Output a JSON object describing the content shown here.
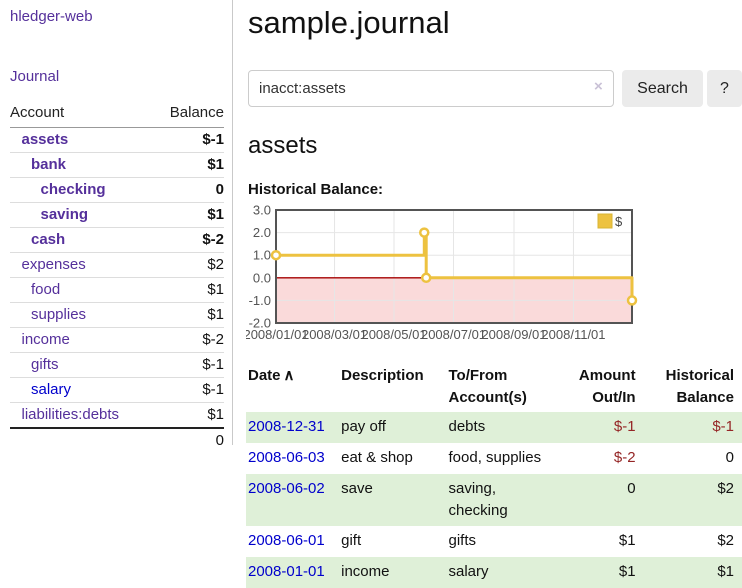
{
  "sidebar": {
    "brand": "hledger-web",
    "nav_journal": "Journal",
    "table": {
      "account_header": "Account",
      "balance_header": "Balance",
      "rows": [
        {
          "name": "assets",
          "level": 1,
          "balance": "$-1",
          "bold": true,
          "balance_style": "neg-strong",
          "link_style": "purple"
        },
        {
          "name": "bank",
          "level": 2,
          "balance": "$1",
          "bold": true,
          "balance_style": "normal",
          "link_style": "purple"
        },
        {
          "name": "checking",
          "level": 3,
          "balance": "0",
          "bold": true,
          "balance_style": "normal",
          "link_style": "purple"
        },
        {
          "name": "saving",
          "level": 3,
          "balance": "$1",
          "bold": true,
          "balance_style": "normal",
          "link_style": "purple"
        },
        {
          "name": "cash",
          "level": 2,
          "balance": "$-2",
          "bold": true,
          "balance_style": "neg-strong",
          "link_style": "purple"
        },
        {
          "name": "expenses",
          "level": 1,
          "balance": "$2",
          "bold": false,
          "balance_style": "normal",
          "link_style": "purple"
        },
        {
          "name": "food",
          "level": 2,
          "balance": "$1",
          "bold": false,
          "balance_style": "normal",
          "link_style": "purple"
        },
        {
          "name": "supplies",
          "level": 2,
          "balance": "$1",
          "bold": false,
          "balance_style": "normal",
          "link_style": "purple"
        },
        {
          "name": "income",
          "level": 1,
          "balance": "$-2",
          "bold": false,
          "balance_style": "neg-soft",
          "link_style": "purple"
        },
        {
          "name": "gifts",
          "level": 2,
          "balance": "$-1",
          "bold": false,
          "balance_style": "neg-soft",
          "link_style": "purple"
        },
        {
          "name": "salary",
          "level": 2,
          "balance": "$-1",
          "bold": false,
          "balance_style": "neg-soft",
          "link_style": "blue"
        },
        {
          "name": "liabilities:debts",
          "level": 1,
          "balance": "$1",
          "bold": false,
          "balance_style": "normal",
          "link_style": "purple"
        }
      ],
      "total": "0"
    }
  },
  "main": {
    "title": "sample.journal",
    "search": {
      "value": "inacct:assets",
      "clear_icon": "×",
      "search_button": "Search",
      "help_button": "?"
    },
    "account_heading": "assets",
    "chart_title": "Historical Balance:"
  },
  "chart_data": {
    "type": "line",
    "title": "Historical Balance",
    "step": true,
    "series": [
      {
        "name": "$",
        "color": "#edc240",
        "points": [
          {
            "date": "2008-01-01",
            "value": 1.0
          },
          {
            "date": "2008-06-01",
            "value": 2.0
          },
          {
            "date": "2008-06-03",
            "value": 0.0
          },
          {
            "date": "2008-12-31",
            "value": -1.0
          }
        ]
      }
    ],
    "x_range": [
      "2008-01-01",
      "2008-12-31"
    ],
    "xticks": [
      "2008/01/01",
      "2008/03/01",
      "2008/05/01",
      "2008/07/01",
      "2008/09/01",
      "2008/11/01"
    ],
    "ylim": [
      -2.0,
      3.0
    ],
    "yticks": [
      3.0,
      2.0,
      1.0,
      0.0,
      -1.0,
      -2.0
    ],
    "legend": {
      "label": "$",
      "position": "top-right"
    },
    "grid": true,
    "colors": {
      "line": "#edc240",
      "marker_fill": "#ffffff",
      "negative_fill": "#fadada",
      "zero_line": "#a40000",
      "grid": "#e6e6e6",
      "border": "#545454",
      "tick_text": "#545454"
    }
  },
  "register": {
    "headers": {
      "date": "Date",
      "sort_icon": "∧",
      "description": "Description",
      "accounts": "To/From Account(s)",
      "amount": "Amount Out/In",
      "balance": "Historical Balance"
    },
    "rows": [
      {
        "date": "2008-12-31",
        "description": "pay off",
        "accounts": "debts",
        "amount": "$-1",
        "amount_negative": true,
        "balance": "$-1",
        "balance_negative": true
      },
      {
        "date": "2008-06-03",
        "description": "eat & shop",
        "accounts": "food, supplies",
        "amount": "$-2",
        "amount_negative": true,
        "balance": "0",
        "balance_negative": false
      },
      {
        "date": "2008-06-02",
        "description": "save",
        "accounts": "saving, checking",
        "amount": "0",
        "amount_negative": false,
        "balance": "$2",
        "balance_negative": false
      },
      {
        "date": "2008-06-01",
        "description": "gift",
        "accounts": "gifts",
        "amount": "$1",
        "amount_negative": false,
        "balance": "$2",
        "balance_negative": false
      },
      {
        "date": "2008-01-01",
        "description": "income",
        "accounts": "salary",
        "amount": "$1",
        "amount_negative": false,
        "balance": "$1",
        "balance_negative": false
      }
    ]
  },
  "colors": {
    "purple_link": "#55309b",
    "blue_link": "#0000cc",
    "negative_strong": "#952626",
    "negative_soft": "#c48383",
    "row_green": "#dff0d8"
  }
}
